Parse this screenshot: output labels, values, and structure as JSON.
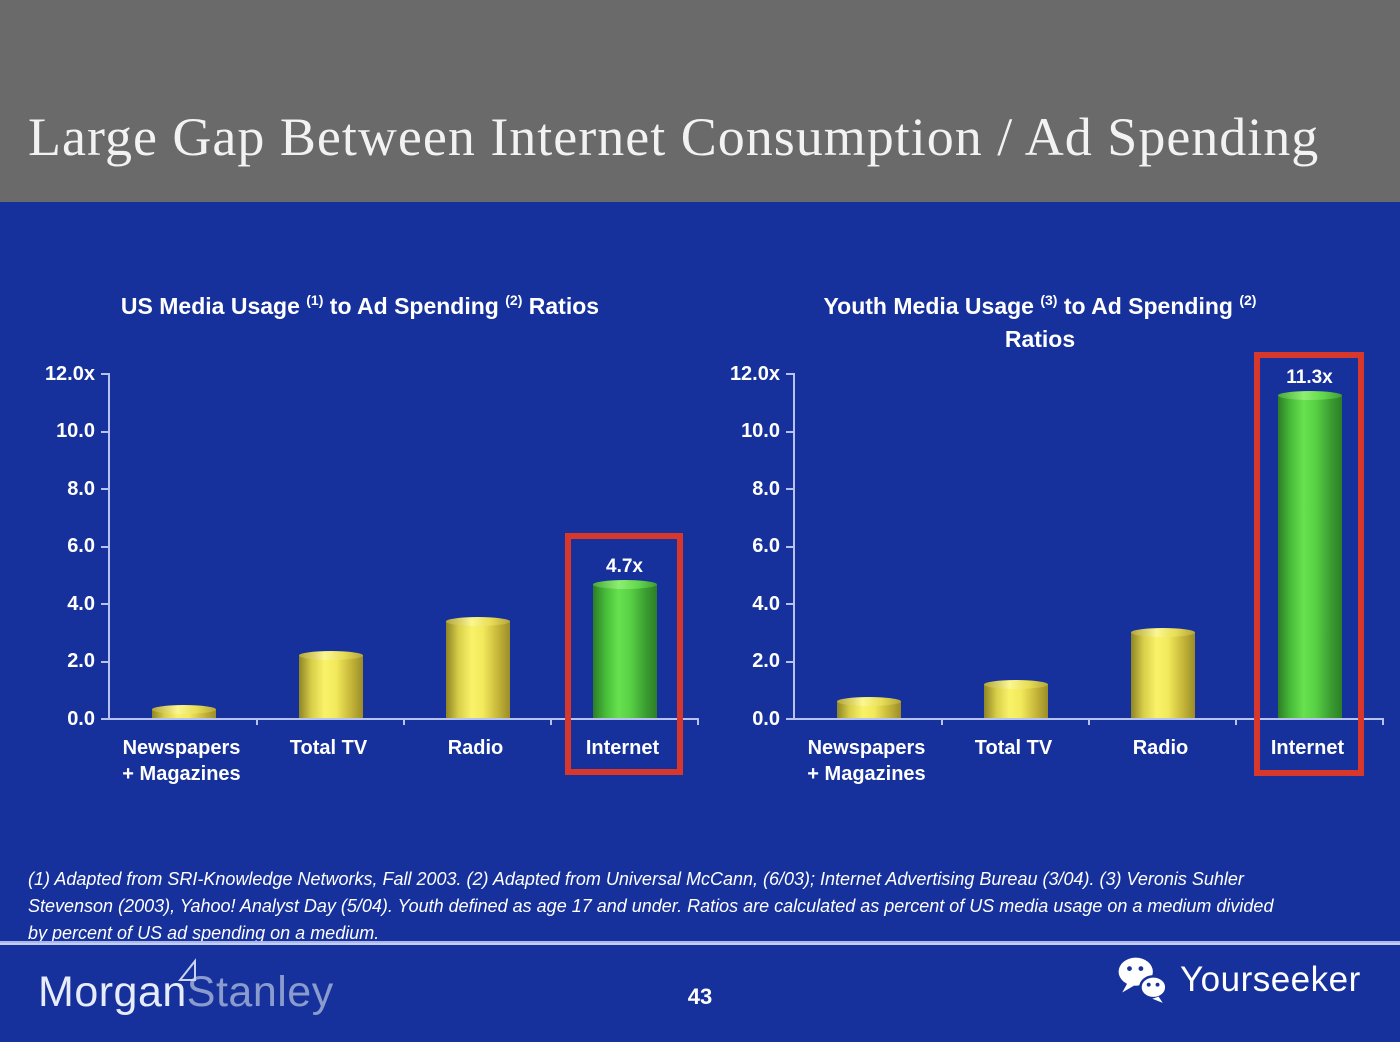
{
  "slide": {
    "title": "Large Gap Between Internet Consumption / Ad Spending",
    "footnote_lines": [
      "(1) Adapted from SRI-Knowledge Networks, Fall 2003.  (2) Adapted from Universal McCann, (6/03); Internet Advertising Bureau (3/04). (3) Veronis Suhler",
      "Stevenson (2003), Yahoo! Analyst Day (5/04).  Youth defined as age 17 and under.  Ratios are calculated as percent of US media usage on a medium divided",
      "by percent of US ad spending on a medium."
    ],
    "footer": {
      "brand_morgan": "Morgan",
      "brand_stanley": "Stanley",
      "page_number": "43",
      "partner_name": "Yourseeker",
      "partner_icon": "wechat-icon",
      "brand_icon": "morgan-stanley-flag-icon"
    }
  },
  "charts": {
    "shared": {
      "y_ticks": [
        "12.0x",
        "10.0",
        "8.0",
        "6.0",
        "4.0",
        "2.0",
        "0.0"
      ],
      "categories": [
        {
          "line1": "Newspapers",
          "line2": "+ Magazines"
        },
        {
          "line1": "Total TV",
          "line2": ""
        },
        {
          "line1": "Radio",
          "line2": ""
        },
        {
          "line1": "Internet",
          "line2": ""
        }
      ]
    },
    "left": {
      "title_pre": "US Media Usage",
      "title_sup1": "(1)",
      "title_mid": "to Ad Spending",
      "title_sup2": "(2)",
      "title_post": "Ratios"
    },
    "right": {
      "title_pre": "Youth Media Usage",
      "title_sup1": "(3)",
      "title_mid": "to Ad Spending",
      "title_sup2": "(2)",
      "title_post": "Ratios"
    }
  },
  "colors": {
    "background_blue": "#17319C",
    "header_gray": "#6A6A6A",
    "bar_yellow": "#F3EC55",
    "bar_green": "#55CF43",
    "highlight_red": "#D8382C",
    "axis_light": "#B7C3EE"
  },
  "chart_data": [
    {
      "type": "bar",
      "title": "US Media Usage (1) to Ad Spending (2) Ratios",
      "categories": [
        "Newspapers + Magazines",
        "Total TV",
        "Radio",
        "Internet"
      ],
      "values": [
        0.3,
        2.2,
        3.4,
        4.7
      ],
      "bar_labels": [
        "",
        "",
        "",
        "4.7x"
      ],
      "bar_colors": [
        "yellow",
        "yellow",
        "yellow",
        "green"
      ],
      "highlighted_category": "Internet",
      "xlabel": "",
      "ylabel": "",
      "ylim": [
        0,
        12
      ],
      "y_tick_labels": [
        "12.0x",
        "10.0",
        "8.0",
        "6.0",
        "4.0",
        "2.0",
        "0.0"
      ],
      "grid": false,
      "legend": false
    },
    {
      "type": "bar",
      "title": "Youth Media Usage (3) to Ad Spending (2) Ratios",
      "categories": [
        "Newspapers + Magazines",
        "Total TV",
        "Radio",
        "Internet"
      ],
      "values": [
        0.6,
        1.2,
        3.0,
        11.3
      ],
      "bar_labels": [
        "",
        "",
        "",
        "11.3x"
      ],
      "bar_colors": [
        "yellow",
        "yellow",
        "yellow",
        "green"
      ],
      "highlighted_category": "Internet",
      "xlabel": "",
      "ylabel": "",
      "ylim": [
        0,
        12
      ],
      "y_tick_labels": [
        "12.0x",
        "10.0",
        "8.0",
        "6.0",
        "4.0",
        "2.0",
        "0.0"
      ],
      "grid": false,
      "legend": false
    }
  ]
}
